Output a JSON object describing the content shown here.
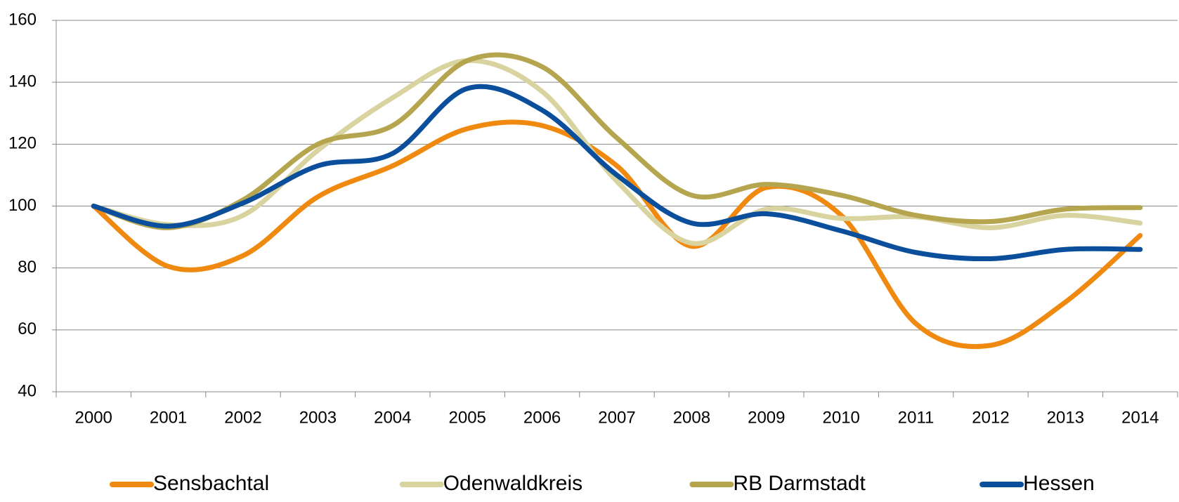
{
  "chart_data": {
    "type": "line",
    "categories": [
      "2000",
      "2001",
      "2002",
      "2003",
      "2004",
      "2005",
      "2006",
      "2007",
      "2008",
      "2009",
      "2010",
      "2011",
      "2012",
      "2013",
      "2014"
    ],
    "series": [
      {
        "name": "Sensbachtal",
        "color": "#f0890f",
        "values": [
          100,
          80.5,
          84,
          103,
          113,
          125,
          126,
          113,
          87,
          106,
          97,
          62,
          55,
          69,
          90.5
        ]
      },
      {
        "name": "Odenwaldkreis",
        "color": "#d9d3a0",
        "values": [
          100,
          94,
          97,
          118,
          135,
          147,
          137,
          108,
          88,
          99,
          96,
          96.5,
          93,
          97,
          94.5
        ]
      },
      {
        "name": "RB Darmstadt",
        "color": "#b5a54e",
        "values": [
          100,
          93,
          102,
          120,
          126,
          147,
          145,
          122,
          103.5,
          107,
          103.5,
          97,
          95,
          99,
          99.5
        ]
      },
      {
        "name": "Hessen",
        "color": "#0b4f9c",
        "values": [
          100,
          93.5,
          101,
          113,
          117,
          138,
          131,
          110,
          94.5,
          97.5,
          92,
          85,
          83,
          86,
          86
        ]
      }
    ],
    "ylim": [
      40,
      160
    ],
    "yticks": [
      40,
      60,
      80,
      100,
      120,
      140,
      160
    ],
    "grid": true,
    "legend": "bottom"
  }
}
